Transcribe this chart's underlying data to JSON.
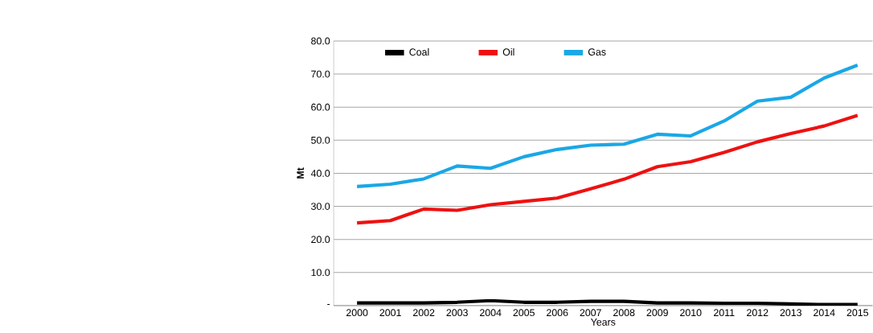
{
  "chart_data": {
    "type": "line",
    "xlabel": "Years",
    "ylabel": "Mt",
    "categories": [
      "2000",
      "2001",
      "2002",
      "2003",
      "2004",
      "2005",
      "2006",
      "2007",
      "2008",
      "2009",
      "2010",
      "2011",
      "2012",
      "2013",
      "2014",
      "2015"
    ],
    "series": [
      {
        "name": "Coal",
        "color": "#000000",
        "values": [
          0.8,
          0.8,
          0.8,
          1.0,
          1.5,
          1.0,
          1.0,
          1.3,
          1.3,
          0.8,
          0.8,
          0.7,
          0.7,
          0.5,
          0.3,
          0.3
        ]
      },
      {
        "name": "Oil",
        "color": "#ee1111",
        "values": [
          25.0,
          25.7,
          29.2,
          28.8,
          30.5,
          31.5,
          32.5,
          35.3,
          38.2,
          42.0,
          43.5,
          46.3,
          49.5,
          52.0,
          54.3,
          57.5
        ]
      },
      {
        "name": "Gas",
        "color": "#1aa7e6",
        "values": [
          36.0,
          36.7,
          38.3,
          42.2,
          41.5,
          45.0,
          47.2,
          48.5,
          48.8,
          51.8,
          51.3,
          55.8,
          61.8,
          63.0,
          68.8,
          72.7
        ]
      }
    ],
    "ylim": [
      0,
      80
    ],
    "yticks": [
      {
        "value": 0,
        "label": "-"
      },
      {
        "value": 10,
        "label": "10.0"
      },
      {
        "value": 20,
        "label": "20.0"
      },
      {
        "value": 30,
        "label": "30.0"
      },
      {
        "value": 40,
        "label": "40.0"
      },
      {
        "value": 50,
        "label": "50.0"
      },
      {
        "value": 60,
        "label": "60.0"
      },
      {
        "value": 70,
        "label": "70.0"
      },
      {
        "value": 80,
        "label": "80.0"
      }
    ],
    "grid": "y",
    "legend": "top",
    "marker": "none",
    "line_style": "solid"
  }
}
